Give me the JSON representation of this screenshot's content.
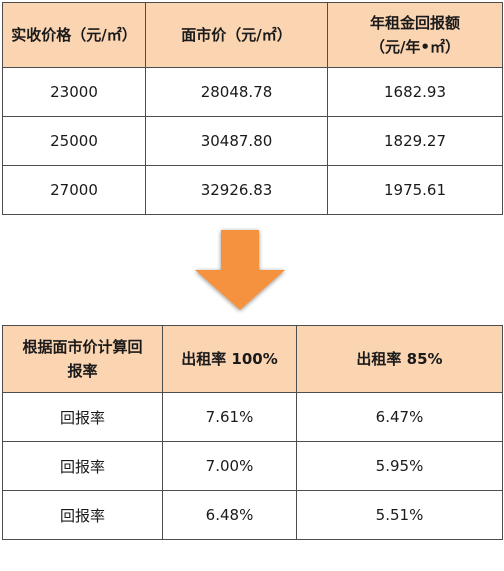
{
  "top_table": {
    "headers": [
      "实收价格（元/㎡）",
      "面市价（元/㎡）",
      "年租金回报额\n（元/年•㎡）"
    ],
    "rows": [
      [
        "23000",
        "28048.78",
        "1682.93"
      ],
      [
        "25000",
        "30487.80",
        "1829.27"
      ],
      [
        "27000",
        "32926.83",
        "1975.61"
      ]
    ]
  },
  "bottom_table": {
    "headers": [
      "根据面市价计算回\n报率",
      "出租率 100%",
      "出租率 85%"
    ],
    "rows": [
      [
        "回报率",
        "7.61%",
        "6.47%"
      ],
      [
        "回报率",
        "7.00%",
        "5.95%"
      ],
      [
        "回报率",
        "6.48%",
        "5.51%"
      ]
    ]
  },
  "colors": {
    "header_background": "#fbd5b2",
    "arrow": "#f4923f"
  },
  "icons": {
    "arrow": "down-arrow-icon"
  }
}
